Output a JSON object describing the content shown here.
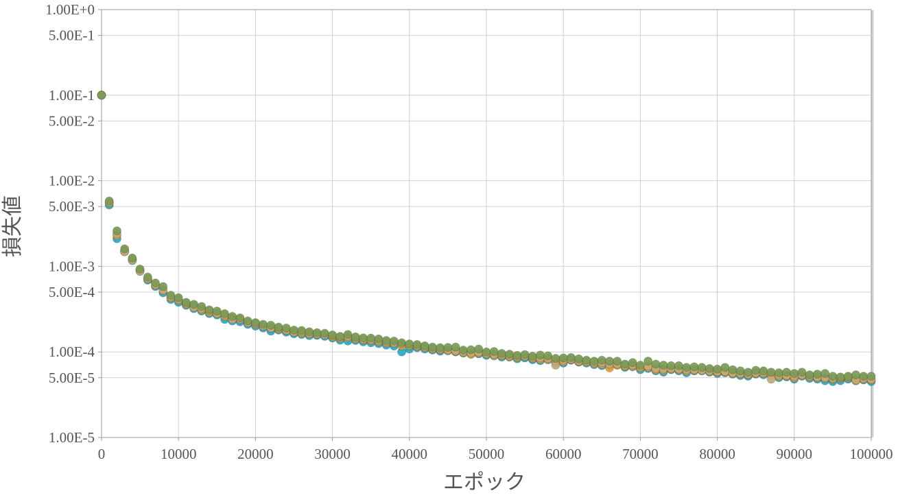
{
  "chart_data": {
    "type": "scatter",
    "xlabel": "エポック",
    "ylabel": "損失値",
    "x_scale": "linear",
    "y_scale": "log",
    "xlim": [
      0,
      100000
    ],
    "ylim": [
      1e-05,
      1
    ],
    "grid": true,
    "x_ticks": [
      "0",
      "10000",
      "20000",
      "30000",
      "40000",
      "50000",
      "60000",
      "70000",
      "80000",
      "90000",
      "100000"
    ],
    "y_ticks": [
      {
        "value": 1,
        "label": "1.00E+0"
      },
      {
        "value": 0.5,
        "label": "5.00E-1"
      },
      {
        "value": 0.1,
        "label": "1.00E-1"
      },
      {
        "value": 0.05,
        "label": "5.00E-2"
      },
      {
        "value": 0.01,
        "label": "1.00E-2"
      },
      {
        "value": 0.005,
        "label": "5.00E-3"
      },
      {
        "value": 0.001,
        "label": "1.00E-3"
      },
      {
        "value": 0.0005,
        "label": "5.00E-4"
      },
      {
        "value": 0.0001,
        "label": "1.00E-4"
      },
      {
        "value": 5e-05,
        "label": "5.00E-5"
      },
      {
        "value": 1e-05,
        "label": "1.00E-5"
      }
    ],
    "x": [
      0,
      1000,
      2000,
      3000,
      4000,
      5000,
      6000,
      7000,
      8000,
      9000,
      10000,
      11000,
      12000,
      13000,
      14000,
      15000,
      16000,
      17000,
      18000,
      19000,
      20000,
      21000,
      22000,
      23000,
      24000,
      25000,
      26000,
      27000,
      28000,
      29000,
      30000,
      31000,
      32000,
      33000,
      34000,
      35000,
      36000,
      37000,
      38000,
      39000,
      40000,
      41000,
      42000,
      43000,
      44000,
      45000,
      46000,
      47000,
      48000,
      49000,
      50000,
      51000,
      52000,
      53000,
      54000,
      55000,
      56000,
      57000,
      58000,
      59000,
      60000,
      61000,
      62000,
      63000,
      64000,
      65000,
      66000,
      67000,
      68000,
      69000,
      70000,
      71000,
      72000,
      73000,
      74000,
      75000,
      76000,
      77000,
      78000,
      79000,
      80000,
      81000,
      82000,
      83000,
      84000,
      85000,
      86000,
      87000,
      88000,
      89000,
      90000,
      91000,
      92000,
      93000,
      94000,
      95000,
      96000,
      97000,
      98000,
      99000,
      100000
    ],
    "series": [
      {
        "color": "#2aa7c9",
        "values": [
          0.1,
          0.0052,
          0.0021,
          0.00148,
          0.00117,
          0.00088,
          0.00069,
          0.00058,
          0.00049,
          0.00041,
          0.00038,
          0.00035,
          0.00032,
          0.0003,
          0.00028,
          0.00027,
          0.00024,
          0.00023,
          0.000225,
          0.00021,
          0.0002,
          0.00019,
          0.000175,
          0.00018,
          0.00017,
          0.000163,
          0.00016,
          0.000155,
          0.000156,
          0.000152,
          0.000145,
          0.000137,
          0.000134,
          0.000136,
          0.000131,
          0.000128,
          0.000125,
          0.00012,
          0.000117,
          0.0001,
          0.000108,
          0.000112,
          0.000108,
          0.000105,
          0.000102,
          0.000103,
          0.0001,
          9.7e-05,
          9.4e-05,
          9.5e-05,
          9.1e-05,
          9e-05,
          8.7e-05,
          8.7e-05,
          8.3e-05,
          8.5e-05,
          8.1e-05,
          7.9e-05,
          8.1e-05,
          7.5e-05,
          7.4e-05,
          8e-05,
          7.6e-05,
          7.4e-05,
          7.1e-05,
          6.9e-05,
          6.8e-05,
          7e-05,
          6.6e-05,
          6.7e-05,
          6.2e-05,
          6.4e-05,
          6e-05,
          5.8e-05,
          6.2e-05,
          6e-05,
          5.7e-05,
          6e-05,
          6e-05,
          5.8e-05,
          5.6e-05,
          5.7e-05,
          5.5e-05,
          5.3e-05,
          5.2e-05,
          5.5e-05,
          5.4e-05,
          5.3e-05,
          5e-05,
          5.1e-05,
          4.8e-05,
          5.2e-05,
          4.9e-05,
          4.8e-05,
          4.6e-05,
          4.5e-05,
          4.6e-05,
          4.8e-05,
          4.6e-05,
          4.7e-05,
          4.5e-05
        ]
      },
      {
        "color": "#e8a12e",
        "values": [
          0.1,
          0.0055,
          0.0023,
          0.00152,
          0.00122,
          0.00091,
          0.00071,
          0.0006,
          0.00052,
          0.00043,
          0.0004,
          0.00036,
          0.00034,
          0.00031,
          0.00029,
          0.00028,
          0.00026,
          0.00025,
          0.00024,
          0.00022,
          0.00021,
          0.0002,
          0.00019,
          0.000185,
          0.000178,
          0.00017,
          0.000166,
          0.000162,
          0.00016,
          0.000158,
          0.00015,
          0.000145,
          0.000148,
          0.000142,
          0.000138,
          0.000136,
          0.000132,
          0.000128,
          0.000126,
          0.000118,
          0.000118,
          0.000116,
          0.000112,
          0.000108,
          0.000106,
          0.000104,
          0.000101,
          9.8e-05,
          9.4e-05,
          9.7e-05,
          9.4e-05,
          9.1e-05,
          9e-05,
          8.8e-05,
          8.6e-05,
          8.8e-05,
          8.4e-05,
          8.2e-05,
          8.2e-05,
          7.8e-05,
          7.7e-05,
          8.1e-05,
          7.7e-05,
          7.6e-05,
          7.3e-05,
          7.2e-05,
          6.5e-05,
          7e-05,
          6.8e-05,
          6.8e-05,
          6.5e-05,
          6.6e-05,
          6.2e-05,
          6.1e-05,
          6.3e-05,
          6.2e-05,
          6e-05,
          6.1e-05,
          6.1e-05,
          5.9e-05,
          5.8e-05,
          5.8e-05,
          5.6e-05,
          5.5e-05,
          5.4e-05,
          5.6e-05,
          5.6e-05,
          5.4e-05,
          5.2e-05,
          5.2e-05,
          5e-05,
          5.3e-05,
          5.1e-05,
          5e-05,
          4.9e-05,
          4.8e-05,
          4.9e-05,
          5e-05,
          4.6e-05,
          4.8e-05,
          4.7e-05
        ]
      },
      {
        "color": "#c2a97a",
        "values": [
          0.1,
          0.0056,
          0.0024,
          0.00148,
          0.00118,
          0.00087,
          0.00072,
          0.00061,
          0.00053,
          0.00044,
          0.00041,
          0.00037,
          0.00033,
          0.00032,
          0.0003,
          0.00028,
          0.00027,
          0.00024,
          0.00024,
          0.00022,
          0.000215,
          0.0002,
          0.00019,
          0.00019,
          0.00018,
          0.00017,
          0.000172,
          0.000165,
          0.000162,
          0.000158,
          0.000155,
          0.00015,
          0.000152,
          0.000146,
          0.00014,
          0.000139,
          0.000136,
          0.000132,
          0.000128,
          0.000124,
          0.00012,
          0.000118,
          0.000114,
          0.00011,
          0.000108,
          0.000106,
          0.000103,
          0.0001,
          9.7e-05,
          9.9e-05,
          9.6e-05,
          9.4e-05,
          9.2e-05,
          9e-05,
          8.8e-05,
          8.9e-05,
          8.6e-05,
          8.5e-05,
          8.4e-05,
          7e-05,
          8e-05,
          8.2e-05,
          7.8e-05,
          7.7e-05,
          7.5e-05,
          7.5e-05,
          7.2e-05,
          7.2e-05,
          6.9e-05,
          7e-05,
          6.7e-05,
          6.8e-05,
          6.4e-05,
          6.3e-05,
          6.4e-05,
          6.3e-05,
          6.2e-05,
          6.2e-05,
          6.1e-05,
          6e-05,
          5.9e-05,
          5.9e-05,
          5.7e-05,
          5.6e-05,
          5.5e-05,
          5.7e-05,
          5.7e-05,
          4.8e-05,
          5.4e-05,
          5.3e-05,
          5.2e-05,
          5.4e-05,
          5.2e-05,
          5.1e-05,
          5e-05,
          4.9e-05,
          5e-05,
          5.1e-05,
          4.7e-05,
          4.9e-05,
          4.8e-05
        ]
      },
      {
        "color": "#7a9a55",
        "values": [
          0.1,
          0.0058,
          0.0026,
          0.0016,
          0.00125,
          0.00093,
          0.00075,
          0.00064,
          0.00058,
          0.00046,
          0.00043,
          0.00038,
          0.00036,
          0.00034,
          0.00031,
          0.0003,
          0.00028,
          0.00026,
          0.00025,
          0.00023,
          0.00022,
          0.00021,
          0.000205,
          0.000195,
          0.00019,
          0.00018,
          0.000178,
          0.000172,
          0.000168,
          0.000165,
          0.000158,
          0.000152,
          0.00016,
          0.00015,
          0.000146,
          0.000145,
          0.000142,
          0.000136,
          0.000134,
          0.000128,
          0.000124,
          0.000122,
          0.000118,
          0.000114,
          0.000112,
          0.000113,
          0.000114,
          0.000105,
          0.000106,
          0.000108,
          0.0001,
          0.000101,
          9.6e-05,
          9.4e-05,
          9.1e-05,
          9.3e-05,
          8.9e-05,
          9.2e-05,
          9e-05,
          8.4e-05,
          8.5e-05,
          8.6e-05,
          8.3e-05,
          8e-05,
          7.8e-05,
          8e-05,
          7.8e-05,
          7.8e-05,
          7.2e-05,
          7.5e-05,
          7e-05,
          7.8e-05,
          7.2e-05,
          7e-05,
          6.9e-05,
          6.9e-05,
          6.6e-05,
          6.7e-05,
          6.6e-05,
          6.4e-05,
          6.3e-05,
          6.6e-05,
          6.2e-05,
          6e-05,
          5.8e-05,
          6.1e-05,
          6e-05,
          5.8e-05,
          5.7e-05,
          5.8e-05,
          5.6e-05,
          5.8e-05,
          5.4e-05,
          5.5e-05,
          5.6e-05,
          5.2e-05,
          5.1e-05,
          5.2e-05,
          5.4e-05,
          5.2e-05,
          5.2e-05
        ]
      }
    ]
  }
}
